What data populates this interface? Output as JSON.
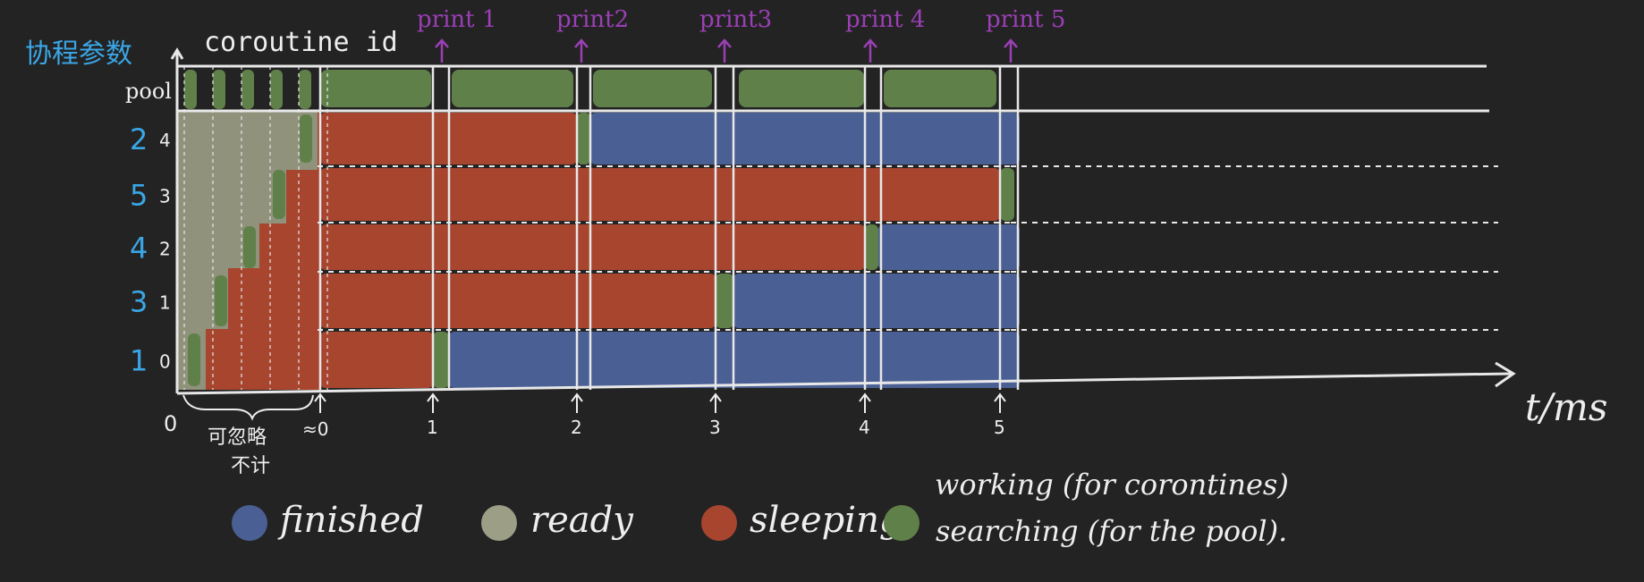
{
  "y_axis_title": "协程参数",
  "y_axis_subtitle": "coroutine id",
  "pool_label": "pool",
  "rows": [
    {
      "param": "2",
      "id": "4"
    },
    {
      "param": "5",
      "id": "3"
    },
    {
      "param": "4",
      "id": "2"
    },
    {
      "param": "3",
      "id": "1"
    },
    {
      "param": "1",
      "id": "0"
    }
  ],
  "print_labels": [
    "print 1",
    "print2",
    "print3",
    "print 4",
    "print 5"
  ],
  "x_ticks": [
    "0",
    "1",
    "2",
    "3",
    "4",
    "5"
  ],
  "x_tick_small": "≈0",
  "x_axis_label": "t/ms",
  "negligible_note_1": "可忽略",
  "negligible_note_2": "不计",
  "legend": [
    {
      "label": "finished",
      "color": "#4a5f93"
    },
    {
      "label": "ready",
      "color": "#9c9e86"
    },
    {
      "label": "sleeping",
      "color": "#a7452f"
    },
    {
      "label": "working (for corontines)",
      "color": "#60804a"
    }
  ],
  "legend_extra": "searching (for the pool).",
  "colors": {
    "finished": "#4a5f93",
    "ready": "#9c9e86",
    "sleeping": "#a7452f",
    "working": "#60804a",
    "grid": "#e8e8e8",
    "accent_print": "#9b3fb5",
    "accent_params": "#3aa6e6"
  },
  "timeline": {
    "pool": [
      {
        "state": "working",
        "t0": 0.95,
        "t1": 1.9
      },
      {
        "state": "working",
        "t0": 2.1,
        "t1": 2.85
      },
      {
        "state": "working",
        "t0": 3.1,
        "t1": 3.8
      },
      {
        "state": "working",
        "t0": 4.1,
        "t1": 4.85
      },
      {
        "state": "working",
        "t0": 5.1,
        "t1": 5.85
      },
      {
        "state": "working",
        "t0": 6.0,
        "t1": 6.8
      }
    ],
    "coroutines": [
      {
        "id": "4",
        "segments": [
          {
            "state": "sleeping",
            "t0": 1.0,
            "t1": 2.95
          },
          {
            "state": "working",
            "t0": 2.95,
            "t1": 3.05
          },
          {
            "state": "finished",
            "t0": 3.05,
            "t1": 6.0
          }
        ]
      },
      {
        "id": "3",
        "segments": [
          {
            "state": "sleeping",
            "t0": 1.0,
            "t1": 5.9
          },
          {
            "state": "working",
            "t0": 5.9,
            "t1": 6.05
          }
        ]
      },
      {
        "id": "2",
        "segments": [
          {
            "state": "sleeping",
            "t0": 1.0,
            "t1": 4.9
          },
          {
            "state": "working",
            "t0": 4.9,
            "t1": 5.05
          },
          {
            "state": "finished",
            "t0": 5.05,
            "t1": 6.0
          }
        ]
      },
      {
        "id": "1",
        "segments": [
          {
            "state": "sleeping",
            "t0": 1.0,
            "t1": 3.95
          },
          {
            "state": "working",
            "t0": 3.95,
            "t1": 4.05
          },
          {
            "state": "finished",
            "t0": 4.05,
            "t1": 6.0
          }
        ]
      },
      {
        "id": "0",
        "segments": [
          {
            "state": "sleeping",
            "t0": 1.0,
            "t1": 1.95
          },
          {
            "state": "working",
            "t0": 1.95,
            "t1": 2.05
          },
          {
            "state": "finished",
            "t0": 2.05,
            "t1": 6.0
          }
        ]
      }
    ]
  }
}
